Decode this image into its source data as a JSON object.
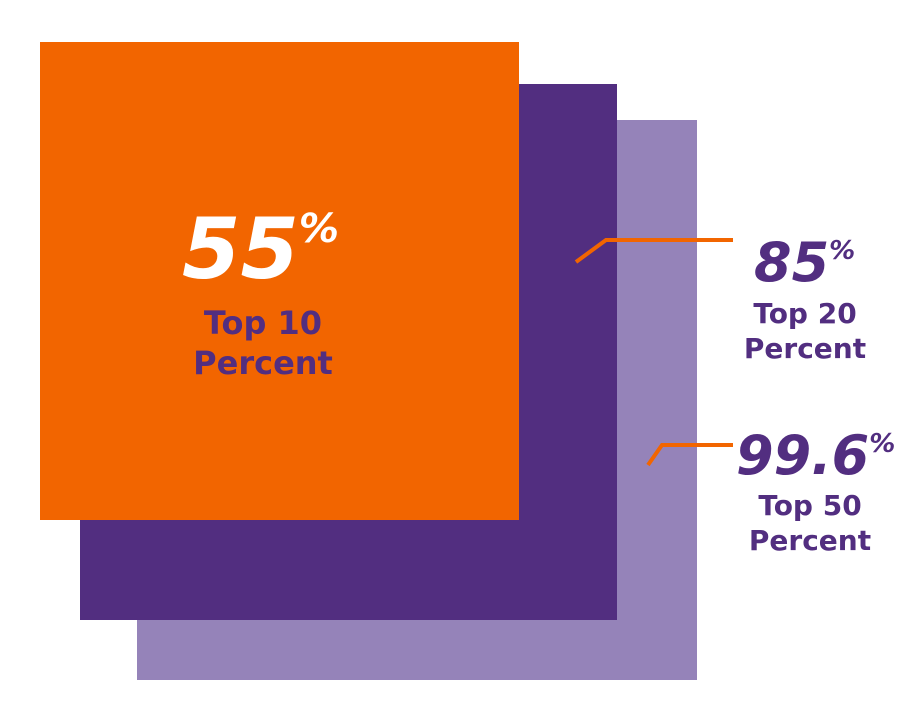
{
  "stats": [
    {
      "value": "55",
      "unit": "%",
      "label_line1": "Top 10",
      "label_line2": "Percent"
    },
    {
      "value": "85",
      "unit": "%",
      "label_line1": "Top 20",
      "label_line2": "Percent"
    },
    {
      "value": "99.6",
      "unit": "%",
      "label_line1": "Top 50",
      "label_line2": "Percent"
    }
  ]
}
